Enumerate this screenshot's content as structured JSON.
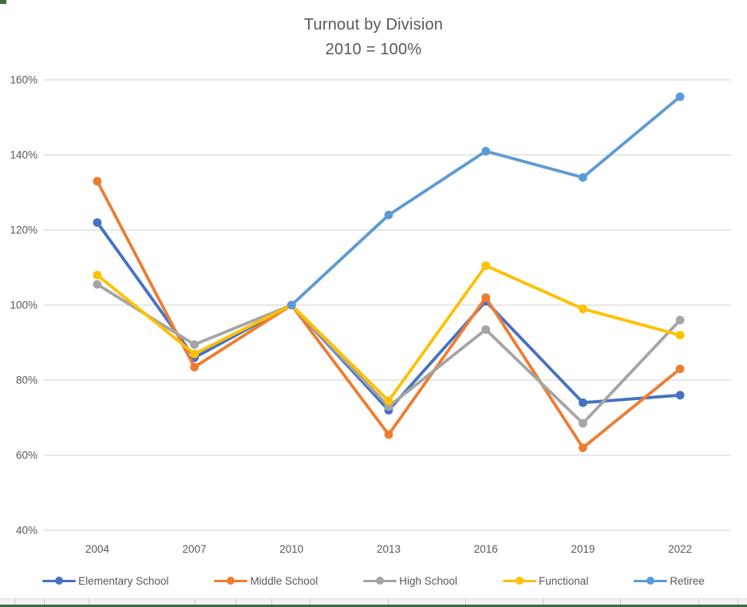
{
  "chart_data": {
    "type": "line",
    "title": "Turnout by Division",
    "subtitle": "2010 = 100%",
    "categories": [
      "2004",
      "2007",
      "2010",
      "2013",
      "2016",
      "2019",
      "2022"
    ],
    "series": [
      {
        "name": "Elementary School",
        "color": "#4472C4",
        "values": [
          122,
          86,
          100,
          72,
          101,
          74,
          76
        ]
      },
      {
        "name": "Middle School",
        "color": "#ED7D31",
        "values": [
          133,
          83.5,
          100,
          65.5,
          102,
          62,
          83
        ]
      },
      {
        "name": "High School",
        "color": "#A5A5A5",
        "values": [
          105.5,
          89.5,
          100,
          73,
          93.5,
          68.5,
          96
        ]
      },
      {
        "name": "Functional",
        "color": "#FFC000",
        "values": [
          108,
          87,
          100,
          74.5,
          110.5,
          99,
          92
        ]
      },
      {
        "name": "Retiree",
        "color": "#5B9BD5",
        "values": [
          null,
          null,
          100,
          124,
          141,
          134,
          155.5
        ]
      }
    ],
    "y_axis": {
      "min": 40,
      "max": 160,
      "step": 20,
      "tick_labels": [
        "40%",
        "60%",
        "80%",
        "100%",
        "120%",
        "140%",
        "160%"
      ],
      "unit": "%"
    },
    "grid": true,
    "legend_position": "bottom",
    "colors": {
      "gridline": "#d9d9d9",
      "axis_text": "#595959",
      "title_text": "#595959",
      "sheet_green": "#3a6b3f"
    }
  }
}
